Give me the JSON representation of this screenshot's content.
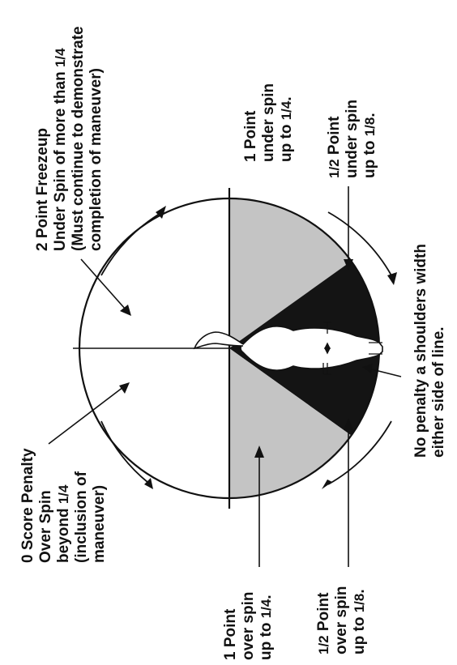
{
  "colors": {
    "over_under_1pt_zone": "#c4c4c4",
    "half_pt_zone": "#141414",
    "outline": "#111111",
    "background": "#ffffff"
  },
  "icons": {
    "horse": "horse-top-view-icon"
  },
  "labels": {
    "zero_penalty": {
      "l1": "0 Score Penalty",
      "l2": "Over Spin",
      "l3": "beyond",
      "l3_frac": "1/4",
      "l4": "(inclusion of",
      "l5": "maneuver)"
    },
    "two_point": {
      "l1": "2 Point Freezeup",
      "l2": "Under Spin of more than",
      "l2_frac": "1/4",
      "l3": "(Must continue to demonstrate",
      "l4": "completion of maneuver)"
    },
    "one_under": {
      "l1": "1 Point",
      "l2": "under spin",
      "l3": "up to",
      "l3_frac": "1/4",
      "l3_end": "."
    },
    "half_under": {
      "l1_frac": "1/2",
      "l1": "Point",
      "l2": "under spin",
      "l3": "up to",
      "l3_frac": "1/8",
      "l3_end": "."
    },
    "no_penalty": {
      "l1": "No penalty a shoulders width",
      "l2": "either side of line."
    },
    "one_over": {
      "l1": "1 Point",
      "l2": "over spin",
      "l3": "up to",
      "l3_frac": "1/4",
      "l3_end": "."
    },
    "half_over": {
      "l1_frac": "1/2",
      "l1": "Point",
      "l2": "over spin",
      "l3": "up to",
      "l3_frac": "1/8",
      "l3_end": "."
    }
  }
}
